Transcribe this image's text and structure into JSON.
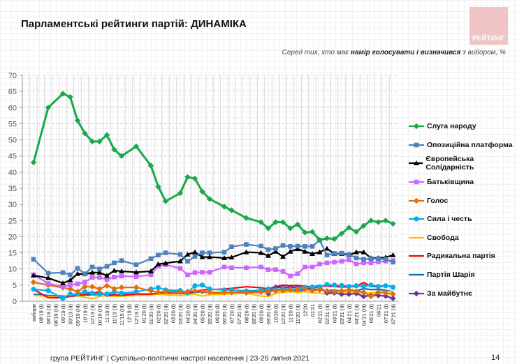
{
  "header": {
    "title": "Парламентські рейтинги партій: ДИНАМІКА",
    "logo_text": "РЕЙТИНГ",
    "subtitle_pre": "Серед тих, хто має ",
    "subtitle_bold": "намір голосувати і визначився",
    "subtitle_post": " з вибором, %"
  },
  "footer": {
    "text": "група РЕЙТИНГ | Суспільно-політичні настрої населення  | 23-25 липня 2021",
    "page": "14"
  },
  "chart_data": {
    "type": "line",
    "title": "",
    "xlabel": "",
    "ylabel": "",
    "ylim": [
      0,
      70
    ],
    "yticks": [
      0,
      5,
      10,
      15,
      20,
      25,
      30,
      35,
      40,
      45,
      50,
      55,
      60,
      65,
      70
    ],
    "grid": true,
    "legend_position": "right",
    "categories": [
      "вибори",
      "08'19 (I)",
      "08'19 (II)",
      "08'19 (III)",
      "09'19 (I)",
      "09'19 (II)",
      "09'19 (III)",
      "10'19 (I)",
      "10'19 (II)",
      "10'19 (III)",
      "11'19 (I)",
      "11'19 (II)",
      "11'19 (III)",
      "12'19 (I)",
      "12'19 (II)",
      "01'20 (I)",
      "01'20 (II)",
      "02'20 (I)",
      "02'20 (II)",
      "03'20 (I)",
      "03'20 (II)",
      "04'20 (I)",
      "04'20 (II)",
      "05'20 (I)",
      "05'20 (II)",
      "06'20 (I)",
      "06'20 (II)",
      "07'20 (I)",
      "07'20 (II)",
      "08'20 (I)",
      "08'20 (II)",
      "09'20 (I)",
      "09'20 (II)",
      "10'20 (I)",
      "10'20 (II)",
      "11'20 (I)",
      "11'20 (II)",
      "12'20",
      "01'21",
      "02'21 (I)",
      "02'21 (II)",
      "03'21 (I)",
      "03'21 (II)",
      "04'21 (I)",
      "04'21 (II)",
      "04'21 (III)",
      "05'21 (I)",
      "06'21",
      "07'21 (I)",
      "07'21 (II)"
    ],
    "series": [
      {
        "name": "Слуга народу",
        "color": "#1aa84a",
        "marker": "diamond",
        "values": [
          43,
          null,
          60,
          null,
          64.3,
          63.3,
          56,
          52,
          49.5,
          49.5,
          51.5,
          47,
          45,
          null,
          48,
          null,
          42,
          35.5,
          31,
          null,
          33.5,
          38.5,
          38,
          34,
          31.7,
          null,
          29.3,
          28.2,
          null,
          25.8,
          null,
          24.5,
          22.6,
          24.5,
          24.5,
          22.6,
          23.8,
          21.3,
          21.5,
          19,
          19.5,
          19.3,
          21,
          22.8,
          21.5,
          23.4,
          25,
          24.5,
          25,
          24
        ]
      },
      {
        "name": "Опозиційна платформа",
        "color": "#4f81bd",
        "marker": "square",
        "values": [
          13,
          null,
          8.7,
          null,
          8.9,
          8.2,
          10.2,
          8.5,
          10.6,
          10,
          10.8,
          11.9,
          12.6,
          null,
          11.3,
          null,
          13.2,
          14.3,
          15,
          null,
          14.5,
          12.4,
          13.9,
          15,
          15,
          null,
          15.2,
          16.9,
          null,
          17.6,
          null,
          17.1,
          16,
          16.3,
          17.3,
          17,
          17.1,
          17,
          17,
          18.9,
          14.3,
          14.8,
          14.9,
          14.5,
          13.4,
          13,
          13.2,
          13.2,
          13,
          12.1
        ]
      },
      {
        "name": "Європейська Солідарність",
        "color": "#000000",
        "marker": "triangle",
        "values": [
          8,
          null,
          7.2,
          null,
          5.6,
          6.5,
          8.5,
          8.4,
          8.9,
          8.9,
          7.9,
          9.5,
          9.3,
          null,
          9,
          null,
          9.3,
          11.5,
          11.8,
          null,
          12.4,
          14.5,
          15.2,
          13.7,
          13.7,
          null,
          13.4,
          13.6,
          null,
          15.2,
          null,
          15,
          14.1,
          15.4,
          13.8,
          15.4,
          16.2,
          15.4,
          14.7,
          15.2,
          16.3,
          14.7,
          14.7,
          14.3,
          15.2,
          15.2,
          13.4,
          13.4,
          13.6,
          14.3
        ]
      },
      {
        "name": "Батьківщина",
        "color": "#cc66ff",
        "marker": "square",
        "values": [
          8.2,
          null,
          5.5,
          null,
          4.6,
          5,
          5.4,
          5.9,
          7.4,
          7.4,
          6.7,
          7.5,
          7.8,
          null,
          7.6,
          null,
          8.2,
          10.9,
          11.3,
          null,
          10.2,
          8.2,
          8.9,
          9,
          9,
          null,
          10.6,
          10.4,
          null,
          10.4,
          null,
          10.6,
          9.8,
          9.8,
          9.2,
          7.8,
          8.5,
          10.6,
          10.6,
          11.5,
          11.9,
          12.1,
          12.4,
          12.8,
          11.5,
          11.9,
          11.9,
          12.2,
          12.4,
          12.6
        ]
      },
      {
        "name": "Голос",
        "color": "#e46c0a",
        "marker": "diamond",
        "values": [
          5.9,
          null,
          5,
          null,
          4.2,
          3.8,
          3,
          4.5,
          4.5,
          3.8,
          4.8,
          3.9,
          4.3,
          null,
          4.3,
          null,
          3.2,
          2.8,
          3,
          null,
          2.8,
          3,
          3.2,
          3,
          2.8,
          null,
          2.7,
          2.7,
          null,
          2.6,
          null,
          2.8,
          3,
          3.2,
          3.3,
          3.5,
          3.6,
          3.8,
          3.3,
          3.5,
          3.2,
          3,
          3.3,
          3.4,
          3.1,
          2.8,
          1.5,
          2.8,
          2.5,
          2.2
        ]
      },
      {
        "name": "Сила і честь",
        "color": "#00b0f0",
        "marker": "circle",
        "values": [
          3.7,
          null,
          3.3,
          null,
          0.9,
          2.2,
          2.2,
          2.9,
          2.5,
          2.2,
          2.3,
          2.9,
          2.5,
          null,
          2.9,
          null,
          3.8,
          4.2,
          3.5,
          null,
          3.3,
          2.6,
          4.8,
          5,
          3.8,
          null,
          3.5,
          3.5,
          null,
          3.2,
          null,
          3.4,
          3.8,
          3.5,
          3.9,
          3.6,
          3.8,
          4.3,
          4.4,
          4.5,
          5.2,
          5,
          4.9,
          4.6,
          4.8,
          4.6,
          5,
          4.6,
          4.8,
          4.3
        ]
      },
      {
        "name": "Свобода",
        "color": "#ffc000",
        "marker": "none",
        "values": [
          1.8,
          null,
          1.5,
          null,
          1.3,
          1.8,
          1.6,
          1.2,
          0.8,
          1.5,
          1.8,
          1.5,
          1.6,
          null,
          1.8,
          null,
          2,
          2.2,
          2,
          null,
          1.8,
          2,
          2.2,
          1.6,
          2,
          null,
          2.2,
          2.3,
          null,
          2.5,
          null,
          1.6,
          1.5,
          2.4,
          2.8,
          3,
          2.7,
          3,
          2.6,
          2.5,
          2.2,
          2.5,
          2.7,
          2.9,
          2.8,
          2.4,
          2.6,
          2.8,
          3.1,
          2.8
        ]
      },
      {
        "name": "Радикальна партія",
        "color": "#ff0000",
        "marker": "none",
        "values": [
          3.7,
          null,
          1.1,
          null,
          1.1,
          1.5,
          1.8,
          2.2,
          2.3,
          3,
          1.6,
          2,
          1.8,
          null,
          2.2,
          null,
          2.2,
          2.5,
          2.8,
          null,
          3,
          2.8,
          3,
          3.5,
          3.6,
          null,
          3.8,
          4,
          null,
          4.5,
          null,
          4.2,
          3.8,
          4.5,
          5,
          4.8,
          4.9,
          4.6,
          4.5,
          4.8,
          4.6,
          4.6,
          4.4,
          4.5,
          4.6,
          5.8,
          4.6,
          4.5,
          4.7,
          4.6
        ]
      },
      {
        "name": "Партія Шарія",
        "color": "#0070c0",
        "marker": "none",
        "values": [
          2.2,
          null,
          1.8,
          null,
          1.6,
          1.5,
          1.7,
          1.9,
          2,
          2.1,
          2.3,
          1.9,
          2,
          null,
          2.3,
          null,
          2.2,
          2.4,
          2.6,
          null,
          2.5,
          2.4,
          2.8,
          2.9,
          2.6,
          null,
          2.5,
          2.7,
          null,
          2.9,
          null,
          3.1,
          3.3,
          3.5,
          3.2,
          3.4,
          3.1,
          3.6,
          3.9,
          3.4,
          3.3,
          3.4,
          3.1,
          3.6,
          3.2,
          3.9,
          3.6,
          3.7,
          3.4,
          2.9
        ]
      },
      {
        "name": "За майбутнє",
        "color": "#7030a0",
        "marker": "diamond",
        "values": [
          null,
          null,
          null,
          null,
          null,
          null,
          null,
          null,
          null,
          null,
          null,
          null,
          null,
          null,
          null,
          null,
          null,
          null,
          null,
          null,
          null,
          null,
          null,
          null,
          null,
          null,
          null,
          null,
          null,
          null,
          null,
          null,
          2.4,
          4.3,
          4.3,
          4.3,
          4.3,
          3.9,
          4.3,
          4.3,
          2.6,
          2.6,
          2.2,
          2.2,
          2.4,
          1.5,
          1.8,
          1.8,
          1.6,
          0.9
        ]
      }
    ]
  }
}
